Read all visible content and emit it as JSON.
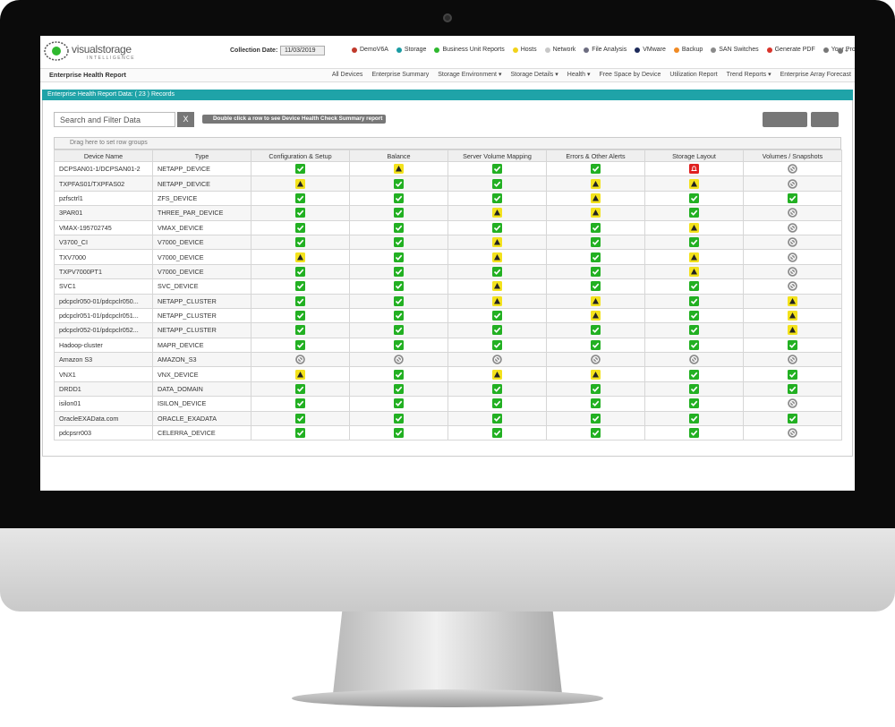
{
  "app": {
    "logo": "visualstorage",
    "logo_sub": "INTELLIGENCE",
    "collection_date_label": "Collection Date:",
    "collection_date": "11/03/2019"
  },
  "top_nav": [
    {
      "label": "DemoV6A",
      "color": "#c0392b"
    },
    {
      "label": "Storage",
      "color": "#1a9ba3"
    },
    {
      "label": "Business Unit Reports",
      "color": "#2eb82e"
    },
    {
      "label": "Hosts",
      "color": "#f1d21a"
    },
    {
      "label": "Network",
      "color": "#c8c8c8"
    },
    {
      "label": "File Analysis",
      "color": "#6d6d80"
    },
    {
      "label": "VMware",
      "color": "#1c2a5a"
    },
    {
      "label": "Backup",
      "color": "#f08a24"
    },
    {
      "label": "SAN Switches",
      "color": "#8a8a8a"
    },
    {
      "label": "Generate PDF",
      "color": "#d9342b"
    },
    {
      "label": "Your Profile",
      "color": "#777777"
    }
  ],
  "sub_nav": {
    "title": "Enterprise Health Report",
    "items": [
      "All Devices",
      "Enterprise Summary",
      "Storage Environment ▾",
      "Storage Details ▾",
      "Health ▾",
      "Free Space by Device",
      "Utilization Report",
      "Trend Reports ▾",
      "Enterprise Array Forecast"
    ]
  },
  "panel": {
    "title": "Enterprise Health Report Data: ( 23 ) Records",
    "search_placeholder": "Search and Filter Data",
    "clear_button": "X",
    "hint": "Double click a row to see Device Health Check Summary report",
    "group_hint": "Drag here to set row groups"
  },
  "table": {
    "columns": [
      "Device Name",
      "Type",
      "Configuration & Setup",
      "Balance",
      "Server Volume Mapping",
      "Errors & Other Alerts",
      "Storage Layout",
      "Volumes / Snapshots"
    ],
    "rows": [
      {
        "name": "DCPSAN01-1/DCPSAN01-2",
        "type": "NETAPP_DEVICE",
        "status": [
          "ok",
          "warning",
          "ok",
          "ok",
          "critical",
          "disabled"
        ]
      },
      {
        "name": "TXPFAS01/TXPFAS02",
        "type": "NETAPP_DEVICE",
        "status": [
          "warning",
          "ok",
          "ok",
          "warning",
          "warning",
          "disabled"
        ]
      },
      {
        "name": "pzfsctrl1",
        "type": "ZFS_DEVICE",
        "status": [
          "ok",
          "ok",
          "ok",
          "warning",
          "ok",
          "ok"
        ]
      },
      {
        "name": "3PAR01",
        "type": "THREE_PAR_DEVICE",
        "status": [
          "ok",
          "ok",
          "warning",
          "warning",
          "ok",
          "disabled"
        ]
      },
      {
        "name": "VMAX-195702745",
        "type": "VMAX_DEVICE",
        "status": [
          "ok",
          "ok",
          "ok",
          "ok",
          "warning",
          "disabled"
        ]
      },
      {
        "name": "V3700_CI",
        "type": "V7000_DEVICE",
        "status": [
          "ok",
          "ok",
          "warning",
          "ok",
          "ok",
          "disabled"
        ]
      },
      {
        "name": "TXV7000",
        "type": "V7000_DEVICE",
        "status": [
          "warning",
          "ok",
          "warning",
          "ok",
          "warning",
          "disabled"
        ]
      },
      {
        "name": "TXPV7000PT1",
        "type": "V7000_DEVICE",
        "status": [
          "ok",
          "ok",
          "ok",
          "ok",
          "warning",
          "disabled"
        ]
      },
      {
        "name": "SVC1",
        "type": "SVC_DEVICE",
        "status": [
          "ok",
          "ok",
          "warning",
          "ok",
          "ok",
          "disabled"
        ]
      },
      {
        "name": "pdcpclr050-01/pdcpclr050...",
        "type": "NETAPP_CLUSTER",
        "status": [
          "ok",
          "ok",
          "warning",
          "warning",
          "ok",
          "warning"
        ]
      },
      {
        "name": "pdcpclr051-01/pdcpclr051...",
        "type": "NETAPP_CLUSTER",
        "status": [
          "ok",
          "ok",
          "ok",
          "warning",
          "ok",
          "warning"
        ]
      },
      {
        "name": "pdcpclr052-01/pdcpclr052...",
        "type": "NETAPP_CLUSTER",
        "status": [
          "ok",
          "ok",
          "ok",
          "ok",
          "ok",
          "warning"
        ]
      },
      {
        "name": "Hadoop-cluster",
        "type": "MAPR_DEVICE",
        "status": [
          "ok",
          "ok",
          "ok",
          "ok",
          "ok",
          "ok"
        ]
      },
      {
        "name": "Amazon S3",
        "type": "AMAZON_S3",
        "status": [
          "disabled",
          "disabled",
          "disabled",
          "disabled",
          "disabled",
          "disabled"
        ]
      },
      {
        "name": "VNX1",
        "type": "VNX_DEVICE",
        "status": [
          "warning",
          "ok",
          "warning",
          "warning",
          "ok",
          "ok"
        ]
      },
      {
        "name": "DRDD1",
        "type": "DATA_DOMAIN",
        "status": [
          "ok",
          "ok",
          "ok",
          "ok",
          "ok",
          "ok"
        ]
      },
      {
        "name": "isilon01",
        "type": "ISILON_DEVICE",
        "status": [
          "ok",
          "ok",
          "ok",
          "ok",
          "ok",
          "disabled"
        ]
      },
      {
        "name": "OracleEXAData.com",
        "type": "ORACLE_EXADATA",
        "status": [
          "ok",
          "ok",
          "ok",
          "ok",
          "ok",
          "ok"
        ]
      },
      {
        "name": "pdcpsrr003",
        "type": "CELERRA_DEVICE",
        "status": [
          "ok",
          "ok",
          "ok",
          "ok",
          "ok",
          "disabled"
        ]
      }
    ]
  }
}
